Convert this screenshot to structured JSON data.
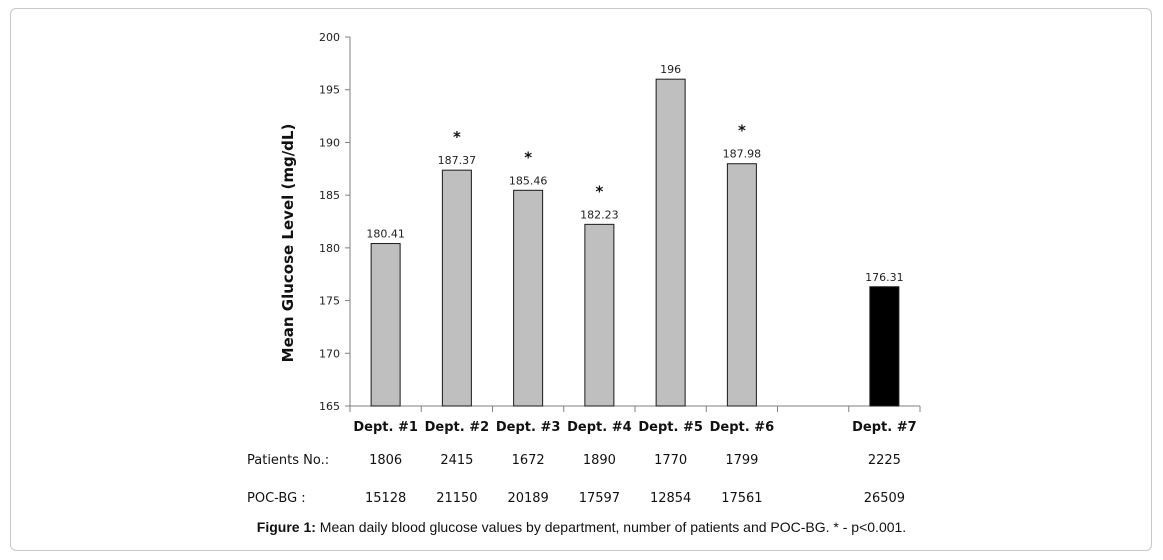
{
  "chart_data": {
    "type": "bar",
    "categories": [
      "Dept. #1",
      "Dept. #2",
      "Dept. #3",
      "Dept. #4",
      "Dept. #5",
      "Dept. #6",
      "",
      "Dept. #7"
    ],
    "values": [
      180.41,
      187.37,
      185.46,
      182.23,
      196,
      187.98,
      null,
      176.31
    ],
    "value_labels": [
      "180.41",
      "187.37",
      "185.46",
      "182.23",
      "196",
      "187.98",
      "",
      "176.31"
    ],
    "significant": [
      false,
      true,
      true,
      true,
      false,
      true,
      false,
      false
    ],
    "significance_marker": "*",
    "bar_colors": [
      "#bfbfbf",
      "#bfbfbf",
      "#bfbfbf",
      "#bfbfbf",
      "#bfbfbf",
      "#bfbfbf",
      "",
      "#000000"
    ],
    "ylabel": "Mean Glucose Level  (mg/dL)",
    "ylim": [
      165,
      200
    ],
    "yticks": [
      165,
      170,
      175,
      180,
      185,
      190,
      195,
      200
    ],
    "grid": false,
    "table_rows": [
      {
        "label": "Patients  No.:",
        "values": [
          "1806",
          "2415",
          "1672",
          "1890",
          "1770",
          "1799",
          "",
          "2225"
        ]
      },
      {
        "label": "POC-BG  :",
        "values": [
          "15128",
          "21150",
          "20189",
          "17597",
          "12854",
          "17561",
          "",
          "26509"
        ]
      }
    ]
  },
  "caption": {
    "prefix": "Figure 1:",
    "text": " Mean daily blood glucose values by department, number of patients and POC-BG.  * - p<0.001."
  }
}
